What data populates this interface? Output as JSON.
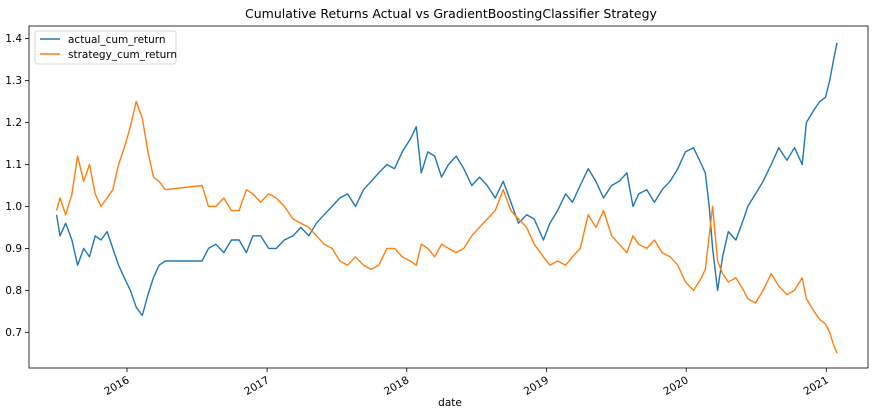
{
  "chart_data": {
    "type": "line",
    "title": "Cumulative Returns Actual vs GradientBoostingClassifier Strategy",
    "xlabel": "date",
    "ylabel": "",
    "xlim": [
      "2015-04-20",
      "2021-04-20"
    ],
    "ylim": [
      0.615,
      1.43
    ],
    "yticks": [
      0.7,
      0.8,
      0.9,
      1.0,
      1.1,
      1.2,
      1.3,
      1.4
    ],
    "ytick_labels": [
      "0.7",
      "0.8",
      "0.9",
      "1.0",
      "1.1",
      "1.2",
      "1.3",
      "1.4"
    ],
    "xticks": [
      "2016-01-01",
      "2017-01-01",
      "2018-01-01",
      "2019-01-01",
      "2020-01-01",
      "2021-01-01"
    ],
    "xtick_labels": [
      "2016",
      "2017",
      "2018",
      "2019",
      "2020",
      "2021"
    ],
    "legend_position": "top-left",
    "grid": false,
    "series": [
      {
        "name": "actual_cum_return",
        "color": "#1f77b4",
        "points": [
          [
            "2015-07-01",
            0.98
          ],
          [
            "2015-07-10",
            0.93
          ],
          [
            "2015-07-25",
            0.96
          ],
          [
            "2015-08-10",
            0.92
          ],
          [
            "2015-08-25",
            0.86
          ],
          [
            "2015-09-10",
            0.9
          ],
          [
            "2015-09-25",
            0.88
          ],
          [
            "2015-10-10",
            0.93
          ],
          [
            "2015-10-25",
            0.92
          ],
          [
            "2015-11-10",
            0.94
          ],
          [
            "2015-11-25",
            0.9
          ],
          [
            "2015-12-10",
            0.86
          ],
          [
            "2015-12-25",
            0.83
          ],
          [
            "2016-01-10",
            0.8
          ],
          [
            "2016-01-25",
            0.76
          ],
          [
            "2016-02-10",
            0.74
          ],
          [
            "2016-02-25",
            0.79
          ],
          [
            "2016-03-10",
            0.83
          ],
          [
            "2016-03-25",
            0.86
          ],
          [
            "2016-04-10",
            0.87
          ],
          [
            "2016-07-15",
            0.87
          ],
          [
            "2016-08-01",
            0.9
          ],
          [
            "2016-08-20",
            0.91
          ],
          [
            "2016-09-10",
            0.89
          ],
          [
            "2016-09-30",
            0.92
          ],
          [
            "2016-10-20",
            0.92
          ],
          [
            "2016-11-08",
            0.89
          ],
          [
            "2016-11-25",
            0.93
          ],
          [
            "2016-12-15",
            0.93
          ],
          [
            "2017-01-05",
            0.9
          ],
          [
            "2017-01-25",
            0.9
          ],
          [
            "2017-02-15",
            0.92
          ],
          [
            "2017-03-10",
            0.93
          ],
          [
            "2017-03-30",
            0.95
          ],
          [
            "2017-04-20",
            0.93
          ],
          [
            "2017-05-10",
            0.96
          ],
          [
            "2017-05-30",
            0.98
          ],
          [
            "2017-06-20",
            1.0
          ],
          [
            "2017-07-10",
            1.02
          ],
          [
            "2017-07-30",
            1.03
          ],
          [
            "2017-08-20",
            1.0
          ],
          [
            "2017-09-10",
            1.04
          ],
          [
            "2017-09-30",
            1.06
          ],
          [
            "2017-10-20",
            1.08
          ],
          [
            "2017-11-10",
            1.1
          ],
          [
            "2017-11-30",
            1.09
          ],
          [
            "2017-12-20",
            1.13
          ],
          [
            "2018-01-10",
            1.16
          ],
          [
            "2018-01-26",
            1.19
          ],
          [
            "2018-02-08",
            1.08
          ],
          [
            "2018-02-25",
            1.13
          ],
          [
            "2018-03-15",
            1.12
          ],
          [
            "2018-04-02",
            1.07
          ],
          [
            "2018-04-20",
            1.1
          ],
          [
            "2018-05-10",
            1.12
          ],
          [
            "2018-05-30",
            1.09
          ],
          [
            "2018-06-20",
            1.05
          ],
          [
            "2018-07-10",
            1.07
          ],
          [
            "2018-07-30",
            1.05
          ],
          [
            "2018-08-20",
            1.02
          ],
          [
            "2018-09-10",
            1.06
          ],
          [
            "2018-09-30",
            1.01
          ],
          [
            "2018-10-20",
            0.96
          ],
          [
            "2018-11-10",
            0.98
          ],
          [
            "2018-11-30",
            0.97
          ],
          [
            "2018-12-24",
            0.92
          ],
          [
            "2019-01-10",
            0.96
          ],
          [
            "2019-01-30",
            0.99
          ],
          [
            "2019-02-20",
            1.03
          ],
          [
            "2019-03-10",
            1.01
          ],
          [
            "2019-03-30",
            1.05
          ],
          [
            "2019-04-20",
            1.09
          ],
          [
            "2019-05-10",
            1.06
          ],
          [
            "2019-05-30",
            1.02
          ],
          [
            "2019-06-20",
            1.05
          ],
          [
            "2019-07-10",
            1.06
          ],
          [
            "2019-07-30",
            1.08
          ],
          [
            "2019-08-15",
            1.0
          ],
          [
            "2019-08-30",
            1.03
          ],
          [
            "2019-09-20",
            1.04
          ],
          [
            "2019-10-10",
            1.01
          ],
          [
            "2019-10-30",
            1.04
          ],
          [
            "2019-11-20",
            1.06
          ],
          [
            "2019-12-10",
            1.09
          ],
          [
            "2019-12-30",
            1.13
          ],
          [
            "2020-01-20",
            1.14
          ],
          [
            "2020-02-10",
            1.1
          ],
          [
            "2020-02-20",
            1.08
          ],
          [
            "2020-03-01",
            1.0
          ],
          [
            "2020-03-10",
            0.9
          ],
          [
            "2020-03-23",
            0.8
          ],
          [
            "2020-04-05",
            0.88
          ],
          [
            "2020-04-20",
            0.94
          ],
          [
            "2020-05-10",
            0.92
          ],
          [
            "2020-05-30",
            0.97
          ],
          [
            "2020-06-10",
            1.0
          ],
          [
            "2020-06-30",
            1.03
          ],
          [
            "2020-07-20",
            1.06
          ],
          [
            "2020-08-10",
            1.1
          ],
          [
            "2020-08-30",
            1.14
          ],
          [
            "2020-09-20",
            1.11
          ],
          [
            "2020-10-10",
            1.14
          ],
          [
            "2020-10-30",
            1.1
          ],
          [
            "2020-11-10",
            1.2
          ],
          [
            "2020-11-30",
            1.23
          ],
          [
            "2020-12-15",
            1.25
          ],
          [
            "2020-12-30",
            1.26
          ],
          [
            "2021-01-10",
            1.3
          ],
          [
            "2021-01-20",
            1.35
          ],
          [
            "2021-01-29",
            1.39
          ]
        ]
      },
      {
        "name": "strategy_cum_return",
        "color": "#ff7f0e",
        "points": [
          [
            "2015-07-01",
            0.99
          ],
          [
            "2015-07-10",
            1.02
          ],
          [
            "2015-07-25",
            0.98
          ],
          [
            "2015-08-10",
            1.03
          ],
          [
            "2015-08-25",
            1.12
          ],
          [
            "2015-09-10",
            1.06
          ],
          [
            "2015-09-25",
            1.1
          ],
          [
            "2015-10-10",
            1.03
          ],
          [
            "2015-10-25",
            1.0
          ],
          [
            "2015-11-10",
            1.02
          ],
          [
            "2015-11-25",
            1.04
          ],
          [
            "2015-12-10",
            1.1
          ],
          [
            "2015-12-25",
            1.14
          ],
          [
            "2016-01-10",
            1.19
          ],
          [
            "2016-01-25",
            1.25
          ],
          [
            "2016-02-10",
            1.21
          ],
          [
            "2016-02-25",
            1.13
          ],
          [
            "2016-03-10",
            1.07
          ],
          [
            "2016-03-25",
            1.06
          ],
          [
            "2016-04-10",
            1.04
          ],
          [
            "2016-07-15",
            1.05
          ],
          [
            "2016-08-01",
            1.0
          ],
          [
            "2016-08-20",
            1.0
          ],
          [
            "2016-09-10",
            1.02
          ],
          [
            "2016-09-30",
            0.99
          ],
          [
            "2016-10-20",
            0.99
          ],
          [
            "2016-11-08",
            1.04
          ],
          [
            "2016-11-25",
            1.03
          ],
          [
            "2016-12-15",
            1.01
          ],
          [
            "2017-01-05",
            1.03
          ],
          [
            "2017-01-25",
            1.02
          ],
          [
            "2017-02-15",
            1.0
          ],
          [
            "2017-03-10",
            0.97
          ],
          [
            "2017-03-30",
            0.96
          ],
          [
            "2017-04-20",
            0.95
          ],
          [
            "2017-05-10",
            0.93
          ],
          [
            "2017-05-30",
            0.91
          ],
          [
            "2017-06-20",
            0.9
          ],
          [
            "2017-07-10",
            0.87
          ],
          [
            "2017-07-30",
            0.86
          ],
          [
            "2017-08-20",
            0.88
          ],
          [
            "2017-09-10",
            0.86
          ],
          [
            "2017-09-30",
            0.85
          ],
          [
            "2017-10-20",
            0.86
          ],
          [
            "2017-11-10",
            0.9
          ],
          [
            "2017-11-30",
            0.9
          ],
          [
            "2017-12-20",
            0.88
          ],
          [
            "2018-01-10",
            0.87
          ],
          [
            "2018-01-26",
            0.86
          ],
          [
            "2018-02-08",
            0.91
          ],
          [
            "2018-02-25",
            0.9
          ],
          [
            "2018-03-15",
            0.88
          ],
          [
            "2018-04-02",
            0.91
          ],
          [
            "2018-04-20",
            0.9
          ],
          [
            "2018-05-10",
            0.89
          ],
          [
            "2018-05-30",
            0.9
          ],
          [
            "2018-06-20",
            0.93
          ],
          [
            "2018-07-10",
            0.95
          ],
          [
            "2018-07-30",
            0.97
          ],
          [
            "2018-08-20",
            0.99
          ],
          [
            "2018-09-10",
            1.04
          ],
          [
            "2018-09-30",
            0.99
          ],
          [
            "2018-10-20",
            0.97
          ],
          [
            "2018-11-10",
            0.95
          ],
          [
            "2018-11-30",
            0.91
          ],
          [
            "2018-12-24",
            0.88
          ],
          [
            "2019-01-10",
            0.86
          ],
          [
            "2019-01-30",
            0.87
          ],
          [
            "2019-02-20",
            0.86
          ],
          [
            "2019-03-10",
            0.88
          ],
          [
            "2019-03-30",
            0.9
          ],
          [
            "2019-04-20",
            0.98
          ],
          [
            "2019-05-10",
            0.95
          ],
          [
            "2019-05-30",
            0.99
          ],
          [
            "2019-06-20",
            0.93
          ],
          [
            "2019-07-10",
            0.91
          ],
          [
            "2019-07-30",
            0.89
          ],
          [
            "2019-08-15",
            0.93
          ],
          [
            "2019-08-30",
            0.91
          ],
          [
            "2019-09-20",
            0.9
          ],
          [
            "2019-10-10",
            0.92
          ],
          [
            "2019-10-30",
            0.89
          ],
          [
            "2019-11-20",
            0.88
          ],
          [
            "2019-12-10",
            0.86
          ],
          [
            "2019-12-30",
            0.82
          ],
          [
            "2020-01-20",
            0.8
          ],
          [
            "2020-02-10",
            0.83
          ],
          [
            "2020-02-20",
            0.85
          ],
          [
            "2020-03-01",
            0.93
          ],
          [
            "2020-03-10",
            1.0
          ],
          [
            "2020-03-23",
            0.87
          ],
          [
            "2020-04-05",
            0.84
          ],
          [
            "2020-04-20",
            0.82
          ],
          [
            "2020-05-10",
            0.83
          ],
          [
            "2020-05-30",
            0.8
          ],
          [
            "2020-06-10",
            0.78
          ],
          [
            "2020-06-30",
            0.77
          ],
          [
            "2020-07-20",
            0.8
          ],
          [
            "2020-08-10",
            0.84
          ],
          [
            "2020-08-30",
            0.81
          ],
          [
            "2020-09-20",
            0.79
          ],
          [
            "2020-10-10",
            0.8
          ],
          [
            "2020-10-30",
            0.83
          ],
          [
            "2020-11-10",
            0.78
          ],
          [
            "2020-11-30",
            0.75
          ],
          [
            "2020-12-15",
            0.73
          ],
          [
            "2020-12-30",
            0.72
          ],
          [
            "2021-01-10",
            0.7
          ],
          [
            "2021-01-20",
            0.67
          ],
          [
            "2021-01-29",
            0.65
          ]
        ]
      }
    ]
  }
}
